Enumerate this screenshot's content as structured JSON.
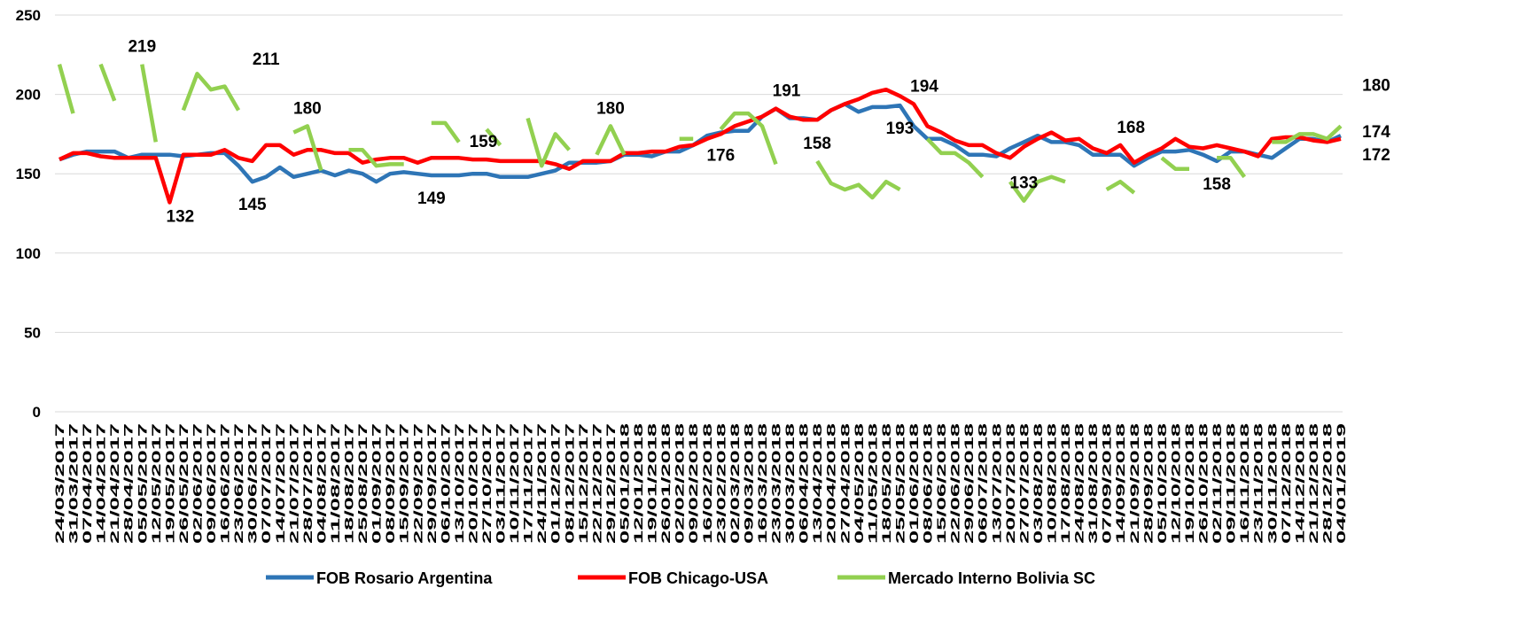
{
  "chart_data": {
    "type": "line",
    "categories": [
      "24/03/2017",
      "31/03/2017",
      "07/04/2017",
      "14/04/2017",
      "21/04/2017",
      "28/04/2017",
      "05/05/2017",
      "12/05/2017",
      "19/05/2017",
      "26/05/2017",
      "02/06/2017",
      "09/06/2017",
      "16/06/2017",
      "23/06/2017",
      "30/06/2017",
      "07/07/2017",
      "14/07/2017",
      "21/07/2017",
      "28/07/2017",
      "04/08/2017",
      "11/08/2017",
      "18/08/2017",
      "25/08/2017",
      "01/09/2017",
      "08/09/2017",
      "15/09/2017",
      "22/09/2017",
      "29/09/2017",
      "06/10/2017",
      "13/10/2017",
      "20/10/2017",
      "27/10/2017",
      "03/11/2017",
      "10/11/2017",
      "17/11/2017",
      "24/11/2017",
      "01/12/2017",
      "08/12/2017",
      "15/12/2017",
      "22/12/2017",
      "29/12/2017",
      "05/01/2018",
      "12/01/2018",
      "19/01/2018",
      "26/01/2018",
      "02/02/2018",
      "09/02/2018",
      "16/02/2018",
      "23/02/2018",
      "02/03/2018",
      "09/03/2018",
      "16/03/2018",
      "23/03/2018",
      "30/03/2018",
      "06/04/2018",
      "13/04/2018",
      "20/04/2018",
      "27/04/2018",
      "04/05/2018",
      "11/05/2018",
      "18/05/2018",
      "25/05/2018",
      "01/06/2018",
      "08/06/2018",
      "15/06/2018",
      "22/06/2018",
      "29/06/2018",
      "06/07/2018",
      "13/07/2018",
      "20/07/2018",
      "27/07/2018",
      "03/08/2018",
      "10/08/2018",
      "17/08/2018",
      "24/08/2018",
      "31/08/2018",
      "07/09/2018",
      "14/09/2018",
      "21/09/2018",
      "28/09/2018",
      "05/10/2018",
      "12/10/2018",
      "19/10/2018",
      "26/10/2018",
      "02/11/2018",
      "09/11/2018",
      "16/11/2018",
      "23/11/2018",
      "30/11/2018",
      "07/12/2018",
      "14/12/2018",
      "21/12/2018",
      "28/12/2018",
      "04/01/2019"
    ],
    "series": [
      {
        "name": "FOB Rosario Argentina",
        "color": "#2e75b6",
        "values": [
          159,
          162,
          164,
          164,
          164,
          160,
          162,
          162,
          162,
          161,
          162,
          163,
          163,
          155,
          145,
          148,
          154,
          148,
          150,
          152,
          149,
          152,
          150,
          145,
          150,
          151,
          150,
          149,
          149,
          149,
          150,
          150,
          148,
          148,
          148,
          150,
          152,
          157,
          157,
          157,
          158,
          162,
          162,
          161,
          164,
          164,
          168,
          174,
          176,
          177,
          177,
          186,
          191,
          185,
          185,
          184,
          190,
          194,
          189,
          192,
          192,
          193,
          180,
          172,
          172,
          168,
          162,
          162,
          161,
          166,
          170,
          174,
          170,
          170,
          168,
          162,
          162,
          162,
          155,
          160,
          164,
          164,
          165,
          162,
          158,
          164,
          164,
          162,
          160,
          166,
          172,
          172,
          170,
          174
        ],
        "value_labels": [
          null,
          null,
          null,
          null,
          null,
          null,
          null,
          null,
          null,
          null,
          null,
          null,
          null,
          null,
          "145",
          null,
          null,
          null,
          null,
          null,
          null,
          null,
          null,
          null,
          null,
          null,
          null,
          "149",
          null,
          null,
          null,
          null,
          null,
          null,
          null,
          null,
          null,
          null,
          null,
          null,
          null,
          null,
          null,
          null,
          null,
          null,
          null,
          null,
          "176",
          null,
          null,
          null,
          null,
          null,
          null,
          null,
          null,
          null,
          null,
          null,
          null,
          "193",
          null,
          null,
          null,
          null,
          null,
          null,
          null,
          null,
          null,
          null,
          null,
          null,
          null,
          null,
          null,
          null,
          null,
          null,
          null,
          null,
          null,
          null,
          "158",
          null,
          null,
          null,
          null,
          null,
          null,
          null,
          null,
          "174"
        ]
      },
      {
        "name": "FOB Chicago-USA",
        "color": "#ff0000",
        "values": [
          159,
          163,
          163,
          161,
          160,
          160,
          160,
          160,
          132,
          162,
          162,
          162,
          165,
          160,
          158,
          168,
          168,
          162,
          165,
          165,
          163,
          163,
          157,
          159,
          160,
          160,
          157,
          160,
          160,
          160,
          159,
          159,
          158,
          158,
          158,
          158,
          156,
          153,
          158,
          158,
          158,
          163,
          163,
          164,
          164,
          167,
          168,
          172,
          175,
          180,
          183,
          186,
          191,
          186,
          184,
          184,
          190,
          194,
          197,
          201,
          203,
          199,
          194,
          180,
          176,
          171,
          168,
          168,
          163,
          160,
          167,
          172,
          176,
          171,
          172,
          166,
          163,
          168,
          157,
          162,
          166,
          172,
          167,
          166,
          168,
          166,
          164,
          161,
          172,
          173,
          173,
          171,
          170,
          172
        ],
        "value_labels": [
          null,
          null,
          null,
          null,
          null,
          null,
          null,
          null,
          "132",
          null,
          null,
          null,
          null,
          null,
          null,
          null,
          null,
          null,
          null,
          null,
          null,
          null,
          null,
          null,
          null,
          null,
          null,
          null,
          null,
          null,
          "159",
          null,
          null,
          null,
          null,
          null,
          null,
          null,
          null,
          null,
          null,
          null,
          null,
          null,
          null,
          null,
          null,
          null,
          null,
          null,
          null,
          null,
          "191",
          null,
          null,
          null,
          null,
          null,
          null,
          null,
          null,
          null,
          "194",
          null,
          null,
          null,
          null,
          null,
          null,
          null,
          null,
          null,
          null,
          null,
          null,
          null,
          null,
          "168",
          null,
          null,
          null,
          null,
          null,
          null,
          null,
          null,
          null,
          null,
          null,
          null,
          null,
          null,
          null,
          "172"
        ]
      },
      {
        "name": "Mercado Interno Bolivia SC",
        "color": "#92d050",
        "values": [
          219,
          188,
          null,
          219,
          196,
          null,
          219,
          170,
          null,
          190,
          213,
          203,
          205,
          190,
          null,
          211,
          null,
          176,
          180,
          152,
          null,
          165,
          165,
          155,
          156,
          156,
          null,
          182,
          182,
          170,
          null,
          178,
          168,
          null,
          185,
          155,
          175,
          165,
          null,
          162,
          180,
          162,
          null,
          null,
          null,
          172,
          172,
          null,
          178,
          188,
          188,
          180,
          156,
          null,
          null,
          158,
          144,
          140,
          143,
          135,
          145,
          140,
          null,
          172,
          163,
          163,
          157,
          148,
          null,
          145,
          133,
          145,
          148,
          145,
          null,
          null,
          140,
          145,
          138,
          null,
          160,
          153,
          153,
          null,
          160,
          160,
          148,
          null,
          170,
          170,
          175,
          175,
          172,
          180
        ],
        "value_labels": [
          null,
          null,
          null,
          null,
          null,
          null,
          "219",
          null,
          null,
          null,
          null,
          null,
          null,
          null,
          null,
          "211",
          null,
          null,
          "180",
          null,
          null,
          null,
          null,
          null,
          null,
          null,
          null,
          null,
          null,
          null,
          null,
          null,
          null,
          null,
          null,
          null,
          null,
          null,
          null,
          null,
          "180",
          null,
          null,
          null,
          null,
          null,
          null,
          null,
          null,
          null,
          null,
          null,
          null,
          null,
          null,
          "158",
          null,
          null,
          null,
          null,
          null,
          null,
          null,
          null,
          null,
          null,
          null,
          null,
          null,
          null,
          "133",
          null,
          null,
          null,
          null,
          null,
          null,
          null,
          null,
          null,
          null,
          null,
          null,
          null,
          null,
          null,
          null,
          null,
          null,
          null,
          null,
          null,
          null,
          "180"
        ]
      }
    ],
    "ylim": [
      0,
      250
    ],
    "yticks": [
      0,
      50,
      100,
      150,
      200,
      250
    ],
    "grid": true
  }
}
